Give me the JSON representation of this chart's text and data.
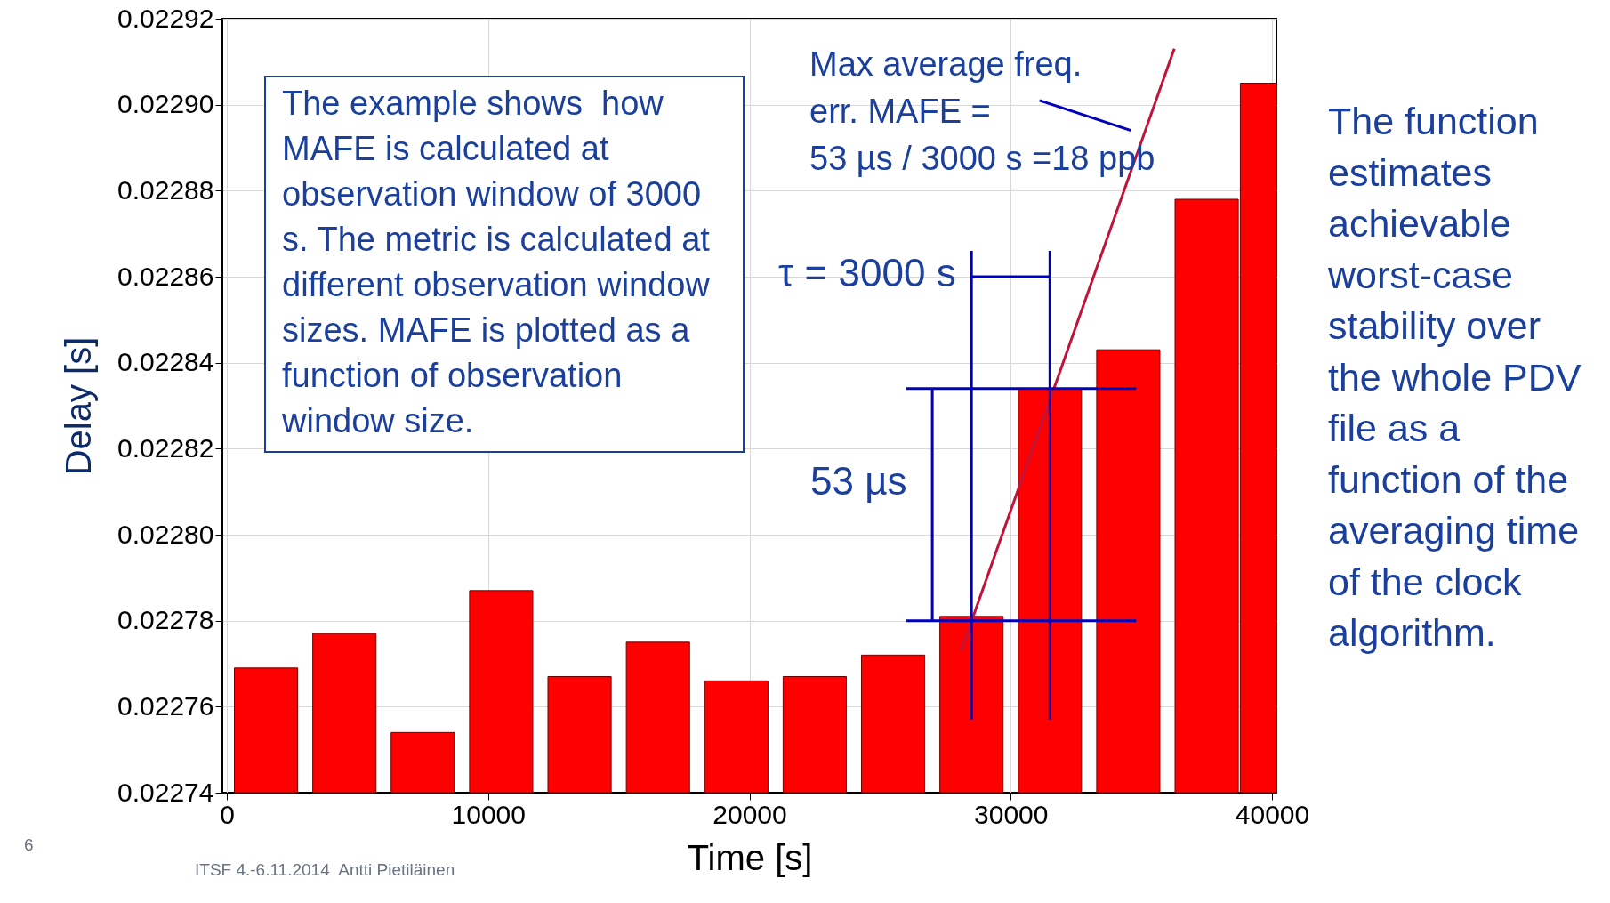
{
  "chart_data": {
    "type": "bar",
    "xlabel": "Time [s]",
    "ylabel": "Delay  [s]",
    "xlim": [
      0,
      40000
    ],
    "xticks": [
      0,
      10000,
      20000,
      30000,
      40000
    ],
    "ylim": [
      0.02274,
      0.02292
    ],
    "yticks": [
      0.02274,
      0.02276,
      0.02278,
      {
        "value": 0.0228,
        "label": "0.02280"
      },
      0.02282,
      0.02284,
      0.02286,
      0.02288,
      {
        "value": 0.0229,
        "label": "0.02290"
      },
      0.02292
    ],
    "grid": true,
    "series": [
      {
        "color": "#ff0000",
        "x": [
          1500,
          4500,
          7500,
          10500,
          13500,
          16500,
          19500,
          22500,
          25500,
          28500,
          31500,
          34500,
          37500,
          40000
        ],
        "values": [
          0.022769,
          0.022777,
          0.022754,
          0.022787,
          0.022767,
          0.022775,
          0.022766,
          0.022767,
          0.022772,
          0.022781,
          0.022834,
          0.022843,
          0.022878,
          0.022905
        ]
      },
      {
        "type": "line",
        "color": "#c0143c",
        "x": [
          28100,
          36260
        ],
        "values": [
          0.022773,
          0.022913
        ]
      },
      {
        "type": "line",
        "color": "#0000c0",
        "x": [
          26000,
          34800
        ],
        "values": [
          0.022834,
          0.022834
        ]
      },
      {
        "type": "line",
        "color": "#0000c0",
        "x": [
          26000,
          34800
        ],
        "values": [
          0.02278,
          0.02278
        ]
      },
      {
        "type": "line",
        "color": "#0000c0",
        "x": [
          28500,
          28500
        ],
        "values": [
          0.022757,
          0.022866
        ]
      },
      {
        "type": "line",
        "color": "#0000c0",
        "x": [
          31500,
          31500
        ],
        "values": [
          0.022757,
          0.022866
        ]
      },
      {
        "type": "line",
        "color": "#0000c0",
        "x": [
          27000,
          27000
        ],
        "values": [
          0.02278,
          0.022834
        ]
      },
      {
        "type": "line",
        "color": "#0000c0",
        "x": [
          28500,
          31500
        ],
        "values": [
          0.02286,
          0.02286
        ]
      },
      {
        "type": "line",
        "color": "#0000c0",
        "x": [
          31100,
          34600
        ],
        "values": [
          0.022901,
          0.022894
        ]
      }
    ],
    "annotations": [
      "The example shows  how MAFE is calculated at observation window of 3000 s. The metric is calculated at different observation window sizes. MAFE is plotted as a function of observation window size.",
      "Max average freq.\nerr. MAFE =\n53 µs / 3000 s =18 ppb",
      "τ = 3000 s",
      "53 µs",
      "The function estimates achievable worst-case stability over the whole PDV file as a function of the averaging time of the clock algorithm.",
      "ITSF 4.-6.11.2014  Antti Pietiläinen",
      "6"
    ]
  }
}
